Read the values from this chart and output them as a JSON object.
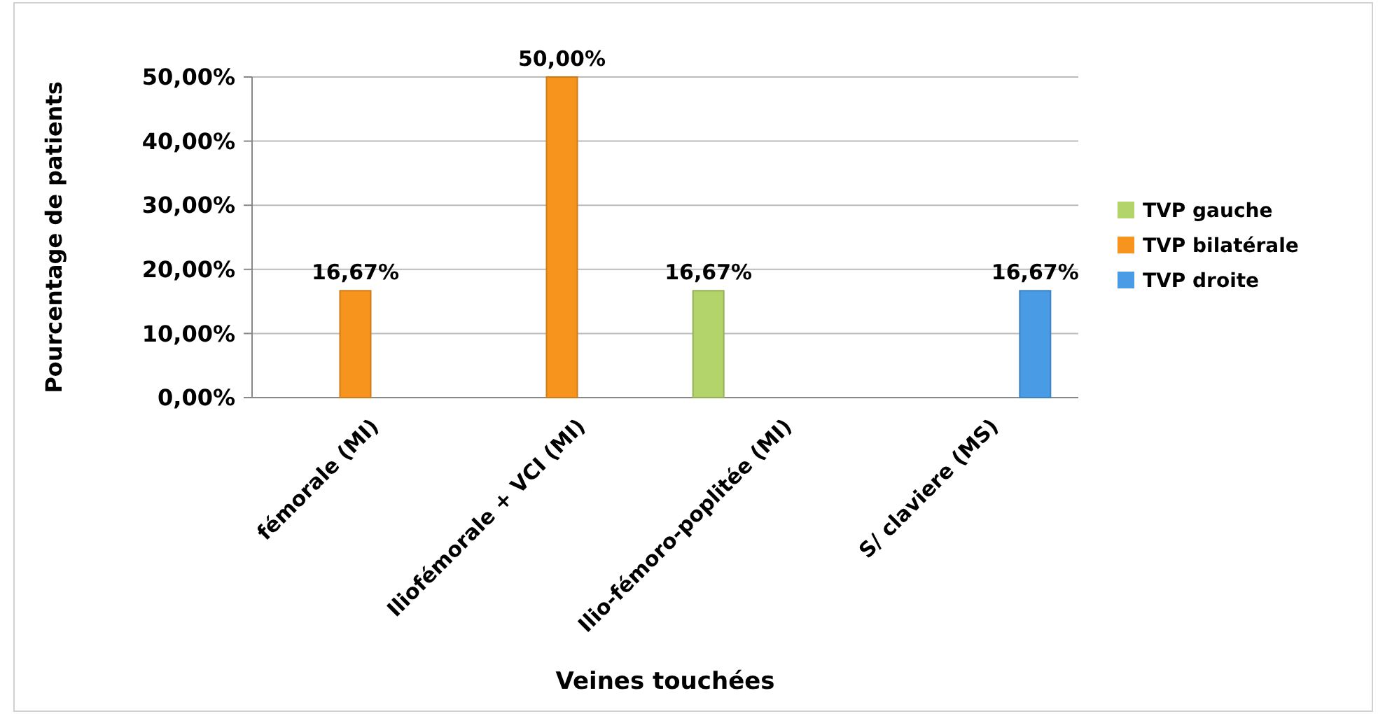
{
  "chart_data": {
    "type": "bar",
    "xlabel": "Veines touchées",
    "ylabel": "Pourcentage de patients",
    "categories": [
      "fémorale (MI)",
      "Iliofémorale + VCI (MI)",
      "Ilio-fémoro-poplitée (MI)",
      "S/ claviere (MS)"
    ],
    "series": [
      {
        "name": "TVP gauche",
        "color": "#b3d46a",
        "values": [
          null,
          null,
          16.67,
          null
        ],
        "value_labels": [
          null,
          null,
          "16,67%",
          null
        ]
      },
      {
        "name": "TVP bilatérale",
        "color": "#f7941d",
        "values": [
          16.67,
          50,
          null,
          null
        ],
        "value_labels": [
          "16,67%",
          "50,00%",
          null,
          null
        ]
      },
      {
        "name": "TVP droite",
        "color": "#4a9be6",
        "values": [
          null,
          null,
          null,
          16.67
        ],
        "value_labels": [
          null,
          null,
          null,
          "16,67%"
        ]
      }
    ],
    "ylim": [
      0,
      50
    ],
    "yticks": [
      {
        "value": 0,
        "label": "0,00%"
      },
      {
        "value": 10,
        "label": "10,00%"
      },
      {
        "value": 20,
        "label": "20,00%"
      },
      {
        "value": 30,
        "label": "30,00%"
      },
      {
        "value": 40,
        "label": "40,00%"
      },
      {
        "value": 50,
        "label": "50,00%"
      }
    ],
    "grid": "y",
    "legend": "right"
  }
}
